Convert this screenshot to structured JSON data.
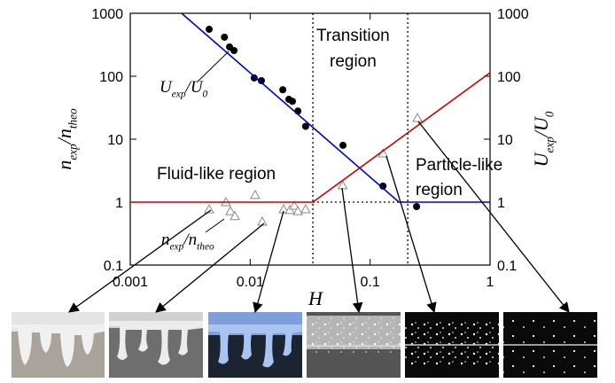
{
  "chart_data": {
    "type": "scatter",
    "xscale": "log",
    "yscale": "log",
    "xlim": [
      0.001,
      1
    ],
    "ylim": [
      0.1,
      1000
    ],
    "y2lim": [
      0.1,
      1000
    ],
    "xticks": [
      0.001,
      0.01,
      0.1,
      1
    ],
    "yticks": [
      0.1,
      1,
      10,
      100,
      1000
    ],
    "y2ticks": [
      0.1,
      1,
      10,
      100,
      1000
    ],
    "x_label": "H",
    "y_label": [
      {
        "text": "n"
      },
      {
        "text": "exp",
        "sub": true
      },
      {
        "text": "/n"
      },
      {
        "text": "theo",
        "sub": true
      }
    ],
    "y2_label": [
      {
        "text": "U"
      },
      {
        "text": "exp",
        "sub": true
      },
      {
        "text": "/U"
      },
      {
        "text": "0",
        "sub": true
      }
    ],
    "series": [
      {
        "mode": "markers",
        "marker": "circle",
        "color": "#000000",
        "axis": "y2",
        "x": [
          0.00455,
          0.0061,
          0.00673,
          0.00733,
          0.0108,
          0.0124,
          0.0187,
          0.021,
          0.0225,
          0.025,
          0.029,
          0.0594,
          0.128,
          0.244
        ],
        "values": [
          557,
          417,
          292,
          256,
          94,
          85,
          61,
          43,
          40,
          28,
          16,
          8,
          1.8,
          0.85
        ]
      },
      {
        "mode": "markers",
        "marker": "triangle",
        "color": "#888888",
        "x": [
          0.00455,
          0.00627,
          0.00683,
          0.00745,
          0.011,
          0.0126,
          0.019,
          0.0214,
          0.0233,
          0.025,
          0.029,
          0.059,
          0.128,
          0.248
        ],
        "values": [
          0.77,
          1.0,
          0.72,
          0.6,
          1.3,
          0.49,
          0.77,
          0.75,
          0.88,
          0.72,
          0.77,
          1.85,
          5.95,
          21.8
        ]
      },
      {
        "mode": "line",
        "color": "#0000cc",
        "axis": "y2",
        "x": [
          0.00268,
          0.174,
          1
        ],
        "values": [
          1000,
          1,
          1
        ]
      },
      {
        "mode": "line",
        "color": "#cc0000",
        "x": [
          0.001,
          0.0333,
          1
        ],
        "values": [
          1,
          1,
          114
        ]
      }
    ],
    "region_boundaries": [
      0.0333,
      0.206
    ],
    "reference_level": 1,
    "annotations": {
      "transition": [
        "Transition",
        "region"
      ],
      "fluid": "Fluid-like region",
      "particle": [
        "Particle-like",
        "region"
      ],
      "u_label": [
        {
          "text": "U"
        },
        {
          "text": "exp",
          "sub": true
        },
        {
          "text": "/U"
        },
        {
          "text": "0",
          "sub": true
        }
      ],
      "n_label": [
        {
          "text": "n"
        },
        {
          "text": "exp",
          "sub": true
        },
        {
          "text": "/n"
        },
        {
          "text": "theo",
          "sub": true
        }
      ]
    }
  }
}
